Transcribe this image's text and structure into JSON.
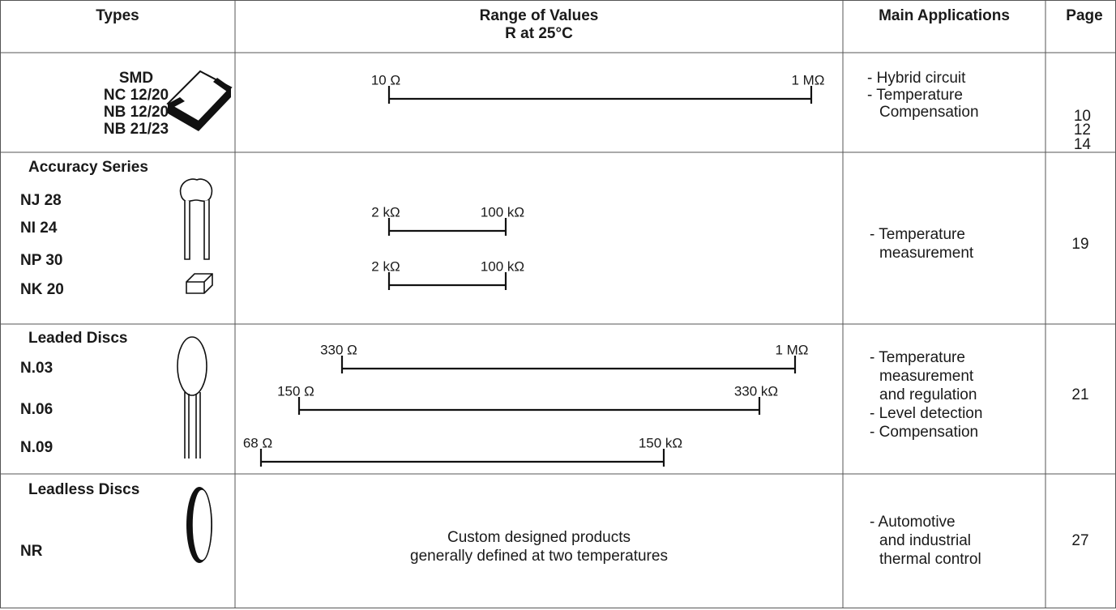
{
  "table": {
    "header": {
      "types": "Types",
      "range": [
        "Range of Values",
        "R at 25°C"
      ],
      "applications": "Main Applications",
      "page": "Page"
    },
    "rows": [
      {
        "types": [
          "SMD",
          "NC 12/20",
          "NB 12/20",
          "NB 21/23"
        ],
        "ranges": [
          {
            "min": "10 Ω",
            "max": "1 MΩ"
          }
        ],
        "applications": [
          "- Hybrid circuit",
          "- Temperature",
          "Compensation"
        ],
        "pages": [
          "10",
          "12",
          "14"
        ]
      },
      {
        "group": "Accuracy Series",
        "types": [
          "NJ 28",
          "NI 24",
          "NP 30",
          "NK 20"
        ],
        "ranges": [
          {
            "min": "2 kΩ",
            "max": "100 kΩ"
          },
          {
            "min": "2 kΩ",
            "max": "100 kΩ"
          }
        ],
        "applications": [
          "- Temperature",
          "measurement"
        ],
        "pages": [
          "19"
        ]
      },
      {
        "group": "Leaded Discs",
        "types": [
          "N.03",
          "N.06",
          "N.09"
        ],
        "ranges": [
          {
            "min": "330 Ω",
            "max": "1 MΩ"
          },
          {
            "min": "150 Ω",
            "max": "330 kΩ"
          },
          {
            "min": "68 Ω",
            "max": "150 kΩ"
          }
        ],
        "applications": [
          "- Temperature",
          "measurement",
          "and regulation",
          "- Level detection",
          "- Compensation"
        ],
        "pages": [
          "21"
        ]
      },
      {
        "group": "Leadless Discs",
        "types": [
          "NR"
        ],
        "note": [
          "Custom designed products",
          "generally defined at two temperatures"
        ],
        "applications": [
          "- Automotive",
          "and industrial",
          "thermal control"
        ],
        "pages": [
          "27"
        ]
      }
    ]
  }
}
